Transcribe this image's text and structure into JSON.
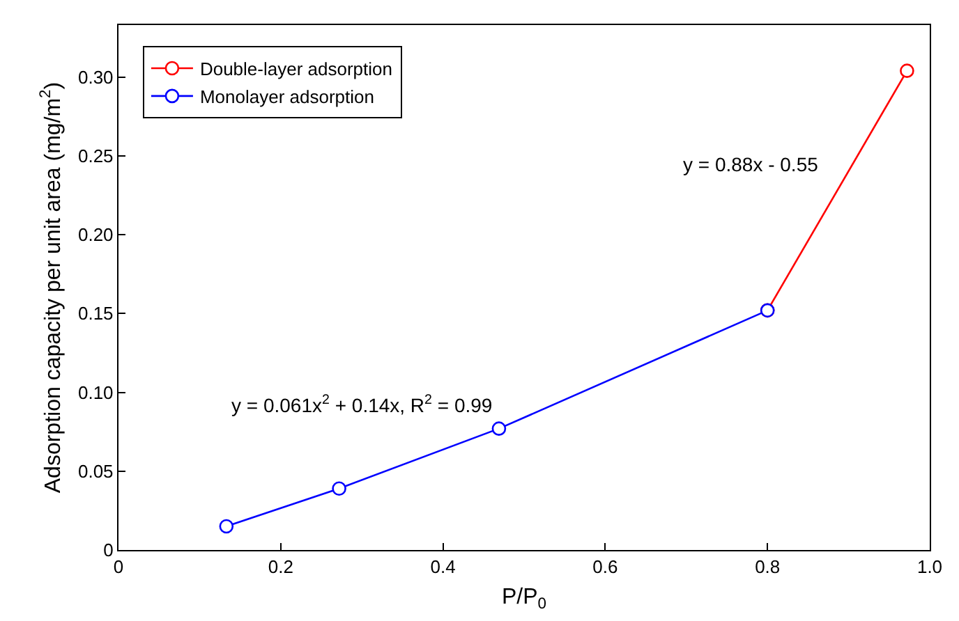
{
  "chart_data": {
    "type": "line",
    "xlabel": "P/P$_{0}$",
    "ylabel": "Adsorption capacity per unit area (mg/m$^{2}$)",
    "series": [
      {
        "name": "Double-layer adsorption",
        "color": "#ff0000",
        "x": [
          0.8,
          0.972
        ],
        "values": [
          0.152,
          0.304
        ]
      },
      {
        "name": "Monolayer adsorption",
        "color": "#0000ff",
        "x": [
          0.133,
          0.272,
          0.469,
          0.8
        ],
        "values": [
          0.015,
          0.039,
          0.077,
          0.152
        ]
      }
    ],
    "annotations": [
      "y = 0.88x - 0.55",
      "y = 0.061x$^{2}$ + 0.14x, R$^{2}$ = 0.99"
    ],
    "xlim": [
      0,
      1
    ],
    "xticks": [
      0,
      0.2,
      0.4,
      0.6,
      0.8,
      {
        "value": 1,
        "label": "1.0"
      }
    ],
    "ylim": [
      0,
      0.333
    ],
    "yticks": [
      0,
      0.05,
      {
        "value": 0.1,
        "label": "0.10"
      },
      0.15,
      {
        "value": 0.2,
        "label": "0.20"
      },
      0.25,
      {
        "value": 0.3,
        "label": "0.30"
      }
    ],
    "legend": "top left",
    "marker": "circle",
    "line_style": "solid"
  }
}
